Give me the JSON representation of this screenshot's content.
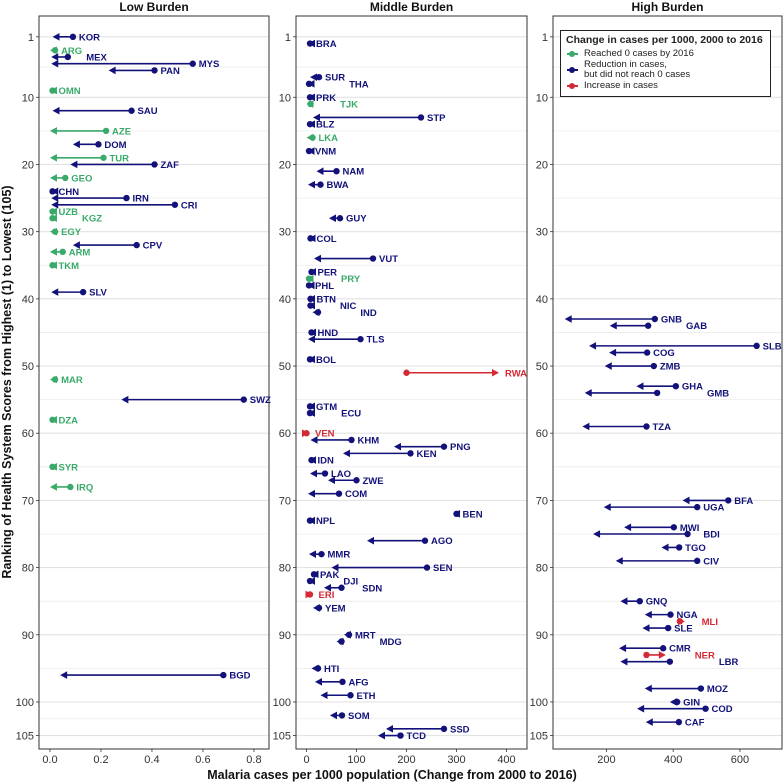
{
  "chart_data": {
    "type": "line",
    "subtype": "faceted arrow/dumbbell plot",
    "xlabel": "Malaria cases per 1000 population (Change from 2000 to 2016)",
    "ylabel": "Ranking of Health System Scores from Highest (1) to Lowest (105)",
    "ylim": [
      -2.1,
      107
    ],
    "y_reversed": true,
    "yticks": [
      1,
      10,
      20,
      30,
      40,
      50,
      60,
      70,
      80,
      90,
      100,
      105
    ],
    "grid": "horizontal",
    "colors": {
      "reached0": "#3aaa6a",
      "reduction": "#12127a",
      "increase": "#d42a35"
    },
    "legend": {
      "title": "Change in cases per 1000, 2000 to 2016",
      "position": "top-right",
      "entries": [
        {
          "key": "reached0",
          "label": "Reached 0 cases by 2016"
        },
        {
          "key": "reduction",
          "label": "Reduction in cases,\nbut did not reach 0 cases",
          "line1": "Reduction in cases,",
          "line2": "but did not reach 0 cases"
        },
        {
          "key": "increase",
          "label": "Increase in cases"
        }
      ]
    },
    "fields": [
      "country",
      "rank",
      "value_2000",
      "value_2016",
      "status"
    ],
    "panels": [
      {
        "title": "Low Burden",
        "xlim": [
          -0.043,
          0.859
        ],
        "xticks": [
          0,
          0.2,
          0.4,
          0.6,
          0.8
        ],
        "xtick_labels": [
          "0.0",
          "0.2",
          "0.4",
          "0.6",
          "0.8"
        ],
        "points": [
          [
            "KOR",
            1,
            0.09,
            0.01,
            "reduction"
          ],
          [
            "ARG",
            3,
            0.02,
            0,
            "reached0"
          ],
          [
            "MEX",
            4,
            0.07,
            0.005,
            "reduction"
          ],
          [
            "MYS",
            5,
            0.56,
            0.005,
            "reduction"
          ],
          [
            "PAN",
            6,
            0.41,
            0.23,
            "reduction"
          ],
          [
            "OMN",
            9,
            0.01,
            0,
            "reached0"
          ],
          [
            "SAU",
            12,
            0.32,
            0.01,
            "reduction"
          ],
          [
            "AZE",
            15,
            0.22,
            0,
            "reached0"
          ],
          [
            "DOM",
            17,
            0.19,
            0.09,
            "reduction"
          ],
          [
            "TUR",
            19,
            0.21,
            0,
            "reached0"
          ],
          [
            "ZAF",
            20,
            0.41,
            0.08,
            "reduction"
          ],
          [
            "GEO",
            22,
            0.06,
            0,
            "reached0"
          ],
          [
            "CHN",
            24,
            0.01,
            0.005,
            "reduction"
          ],
          [
            "IRN",
            25,
            0.3,
            0.005,
            "reduction"
          ],
          [
            "CRI",
            26,
            0.49,
            0.005,
            "reduction"
          ],
          [
            "UZB",
            27,
            0.01,
            0,
            "reached0"
          ],
          [
            "KGZ",
            28,
            0.01,
            0,
            "reached0"
          ],
          [
            "EGY",
            30,
            0.02,
            0,
            "reached0"
          ],
          [
            "CPV",
            32,
            0.34,
            0.09,
            "reduction"
          ],
          [
            "ARM",
            33,
            0.05,
            0,
            "reached0"
          ],
          [
            "TKM",
            35,
            0.01,
            0,
            "reached0"
          ],
          [
            "SLV",
            39,
            0.13,
            0.005,
            "reduction"
          ],
          [
            "MAR",
            52,
            0.02,
            0,
            "reached0"
          ],
          [
            "SWZ",
            55,
            0.76,
            0.28,
            "reduction"
          ],
          [
            "DZA",
            58,
            0.01,
            0,
            "reached0"
          ],
          [
            "SYR",
            65,
            0.01,
            0,
            "reached0"
          ],
          [
            "IRQ",
            68,
            0.08,
            0,
            "reached0"
          ],
          [
            "BGD",
            96,
            0.68,
            0.04,
            "reduction"
          ]
        ]
      },
      {
        "title": "Middle Burden",
        "xlim": [
          -21,
          441
        ],
        "xticks": [
          0,
          100,
          200,
          300,
          400
        ],
        "xtick_labels": [
          "0",
          "100",
          "200",
          "300",
          "400"
        ],
        "points": [
          [
            "BRA",
            2,
            7,
            3,
            "reduction"
          ],
          [
            "SUR",
            7,
            25,
            7,
            "reduction"
          ],
          [
            "THA",
            8,
            5,
            2,
            "reduction"
          ],
          [
            "PRK",
            10,
            7,
            3,
            "reduction"
          ],
          [
            "TJK",
            11,
            8,
            0,
            "reached0"
          ],
          [
            "STP",
            13,
            229,
            13,
            "reduction"
          ],
          [
            "BLZ",
            14,
            7,
            3,
            "reduction"
          ],
          [
            "LKA",
            16,
            12,
            0,
            "reached0"
          ],
          [
            "VNM",
            18,
            5,
            2,
            "reduction"
          ],
          [
            "NAM",
            21,
            60,
            20,
            "reduction"
          ],
          [
            "BWA",
            23,
            28,
            3,
            "reduction"
          ],
          [
            "GUY",
            28,
            67,
            45,
            "reduction"
          ],
          [
            "COL",
            31,
            8,
            4,
            "reduction"
          ],
          [
            "VUT",
            34,
            133,
            15,
            "reduction"
          ],
          [
            "PER",
            36,
            10,
            5,
            "reduction"
          ],
          [
            "PRY",
            37,
            5,
            0,
            "reached0"
          ],
          [
            "PHL",
            38,
            5,
            2,
            "reduction"
          ],
          [
            "BTN",
            40,
            8,
            3,
            "reduction"
          ],
          [
            "NIC",
            41,
            8,
            3,
            "reduction"
          ],
          [
            "IND",
            42,
            23,
            12,
            "reduction"
          ],
          [
            "HND",
            45,
            10,
            5,
            "reduction"
          ],
          [
            "TLS",
            46,
            108,
            3,
            "reduction"
          ],
          [
            "BOL",
            49,
            7,
            3,
            "reduction"
          ],
          [
            "RWA",
            51,
            200,
            385,
            "increase"
          ],
          [
            "GTM",
            56,
            7,
            3,
            "reduction"
          ],
          [
            "ECU",
            57,
            7,
            3,
            "reduction"
          ],
          [
            "VEN",
            60,
            0,
            5,
            "increase"
          ],
          [
            "KHM",
            61,
            90,
            8,
            "reduction"
          ],
          [
            "PNG",
            62,
            275,
            175,
            "reduction"
          ],
          [
            "KEN",
            63,
            208,
            73,
            "reduction"
          ],
          [
            "IDN",
            64,
            10,
            5,
            "reduction"
          ],
          [
            "LAO",
            66,
            37,
            7,
            "reduction"
          ],
          [
            "ZWE",
            67,
            100,
            43,
            "reduction"
          ],
          [
            "COM",
            69,
            65,
            3,
            "reduction"
          ],
          [
            "BEN",
            72,
            300,
            293,
            "reduction"
          ],
          [
            "NPL",
            73,
            7,
            3,
            "reduction"
          ],
          [
            "AGO",
            76,
            237,
            121,
            "reduction"
          ],
          [
            "MMR",
            78,
            30,
            5,
            "reduction"
          ],
          [
            "SEN",
            80,
            241,
            50,
            "reduction"
          ],
          [
            "PAK",
            81,
            15,
            10,
            "reduction"
          ],
          [
            "DJI",
            82,
            7,
            3,
            "reduction"
          ],
          [
            "SDN",
            83,
            70,
            35,
            "reduction"
          ],
          [
            "ERI",
            84,
            7,
            12,
            "increase"
          ],
          [
            "YEM",
            86,
            25,
            13,
            "reduction"
          ],
          [
            "MRT",
            90,
            85,
            75,
            "reduction"
          ],
          [
            "MDG",
            91,
            70,
            60,
            "reduction"
          ],
          [
            "HTI",
            95,
            23,
            10,
            "reduction"
          ],
          [
            "AFG",
            97,
            72,
            17,
            "reduction"
          ],
          [
            "ETH",
            99,
            88,
            28,
            "reduction"
          ],
          [
            "SOM",
            102,
            71,
            47,
            "reduction"
          ],
          [
            "SSD",
            104,
            275,
            159,
            "reduction"
          ],
          [
            "TCD",
            105,
            188,
            143,
            "reduction"
          ]
        ]
      },
      {
        "title": "High Burden",
        "xlim": [
          40,
          726
        ],
        "xticks": [
          200,
          400,
          600
        ],
        "xtick_labels": [
          "200",
          "400",
          "600"
        ],
        "points": [
          [
            "GNB",
            43,
            345,
            75,
            "reduction"
          ],
          [
            "GAB",
            44,
            325,
            210,
            "reduction"
          ],
          [
            "SLB",
            47,
            650,
            148,
            "reduction"
          ],
          [
            "COG",
            48,
            322,
            208,
            "reduction"
          ],
          [
            "ZMB",
            50,
            342,
            195,
            "reduction"
          ],
          [
            "GHA",
            53,
            408,
            290,
            "reduction"
          ],
          [
            "GMB",
            54,
            352,
            135,
            "reduction"
          ],
          [
            "TZA",
            59,
            320,
            128,
            "reduction"
          ],
          [
            "BFA",
            70,
            565,
            428,
            "reduction"
          ],
          [
            "UGA",
            71,
            472,
            192,
            "reduction"
          ],
          [
            "MWI",
            74,
            402,
            253,
            "reduction"
          ],
          [
            "BDI",
            75,
            443,
            160,
            "reduction"
          ],
          [
            "TGO",
            77,
            418,
            365,
            "reduction"
          ],
          [
            "CIV",
            79,
            472,
            228,
            "reduction"
          ],
          [
            "GNQ",
            85,
            300,
            242,
            "reduction"
          ],
          [
            "NGA",
            87,
            392,
            315,
            "reduction"
          ],
          [
            "MLI",
            88,
            420,
            435,
            "increase"
          ],
          [
            "SLE",
            89,
            385,
            308,
            "reduction"
          ],
          [
            "CMR",
            92,
            370,
            238,
            "reduction"
          ],
          [
            "NER",
            93,
            320,
            378,
            "increase"
          ],
          [
            "LBR",
            94,
            390,
            242,
            "reduction"
          ],
          [
            "MOZ",
            98,
            483,
            315,
            "reduction"
          ],
          [
            "GIN",
            100,
            412,
            390,
            "reduction"
          ],
          [
            "COD",
            101,
            497,
            292,
            "reduction"
          ],
          [
            "CAF",
            103,
            417,
            318,
            "reduction"
          ]
        ]
      }
    ]
  }
}
